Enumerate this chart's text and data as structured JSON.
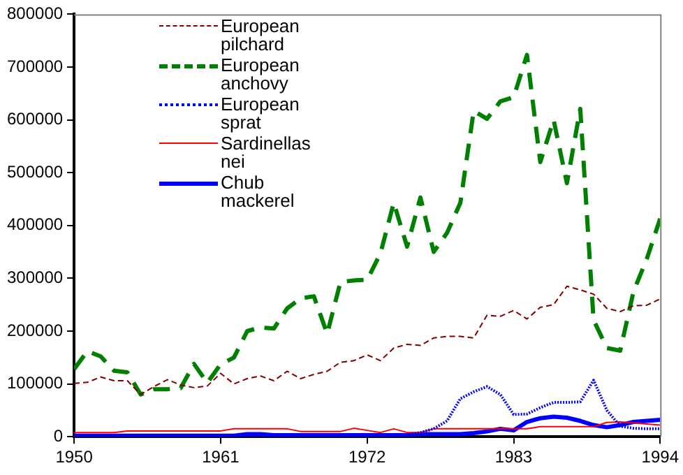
{
  "chart_data": {
    "type": "line",
    "x": [
      1950,
      1951,
      1952,
      1953,
      1954,
      1955,
      1956,
      1957,
      1958,
      1959,
      1960,
      1961,
      1962,
      1963,
      1964,
      1965,
      1966,
      1967,
      1968,
      1969,
      1970,
      1971,
      1972,
      1973,
      1974,
      1975,
      1976,
      1977,
      1978,
      1979,
      1980,
      1981,
      1982,
      1983,
      1984,
      1985,
      1986,
      1987,
      1988,
      1989,
      1990,
      1991,
      1992,
      1993,
      1994
    ],
    "xlim": [
      1950,
      1994
    ],
    "xticks": [
      1950,
      1961,
      1972,
      1983,
      1994
    ],
    "ylim": [
      0,
      800000
    ],
    "yticks": [
      0,
      100000,
      200000,
      300000,
      400000,
      500000,
      600000,
      700000,
      800000
    ],
    "grid": false,
    "legend": "top",
    "marker": "none",
    "series": [
      {
        "name": "European pilchard",
        "color": "#800000",
        "line_style": "dashed",
        "values": [
          101000,
          103000,
          113000,
          106000,
          106000,
          80000,
          95000,
          108000,
          98000,
          93000,
          96000,
          120000,
          100000,
          110000,
          115000,
          106000,
          124000,
          110000,
          118000,
          124000,
          141000,
          144000,
          155000,
          144000,
          168000,
          175000,
          173000,
          187000,
          190000,
          190000,
          187000,
          230000,
          228000,
          239000,
          223000,
          245000,
          250000,
          285000,
          278000,
          270000,
          243000,
          237000,
          248000,
          249000,
          261000
        ]
      },
      {
        "name": "European anchovy",
        "color": "#008000",
        "line_style": "dashed",
        "values": [
          128000,
          162000,
          152000,
          125000,
          122000,
          80000,
          90000,
          90000,
          92000,
          138000,
          102000,
          137000,
          150000,
          200000,
          207000,
          205000,
          243000,
          262000,
          266000,
          195000,
          293000,
          296000,
          297000,
          347000,
          443000,
          360000,
          453000,
          350000,
          386000,
          443000,
          617000,
          602000,
          635000,
          643000,
          723000,
          520000,
          600000,
          480000,
          621000,
          221000,
          168000,
          163000,
          275000,
          337000,
          413000
        ]
      },
      {
        "name": "European sprat",
        "color": "#0000ff",
        "line_style": "dotted",
        "values": [
          2000,
          2000,
          2000,
          2000,
          2000,
          2000,
          2000,
          2000,
          2000,
          2000,
          2000,
          2000,
          2000,
          2000,
          2000,
          2000,
          2000,
          2000,
          2000,
          2000,
          2000,
          4000,
          4000,
          4000,
          4000,
          4000,
          8000,
          15000,
          30000,
          72000,
          85000,
          95000,
          80000,
          42000,
          43000,
          55000,
          65000,
          65000,
          66000,
          107000,
          50000,
          20000,
          16000,
          15000,
          15000
        ]
      },
      {
        "name": "Sardinellas nei",
        "color": "#ff0000",
        "line_style": "solid",
        "values": [
          8000,
          8000,
          8000,
          8000,
          11000,
          11000,
          11000,
          11000,
          11000,
          11000,
          11000,
          11000,
          15000,
          15000,
          15000,
          15000,
          15000,
          10000,
          10000,
          10000,
          10000,
          16000,
          12000,
          8000,
          15000,
          8000,
          8000,
          15000,
          15000,
          15000,
          15000,
          15000,
          15000,
          15000,
          15000,
          19000,
          19000,
          19000,
          19000,
          19000,
          27000,
          28000,
          26000,
          24000,
          22000
        ]
      },
      {
        "name": "Chub mackerel",
        "color": "#0000ff",
        "line_style": "solid",
        "values": [
          2000,
          2000,
          2000,
          2000,
          2000,
          2000,
          2000,
          2000,
          2000,
          2000,
          2000,
          2000,
          2000,
          5000,
          5000,
          3000,
          3000,
          3000,
          3000,
          3000,
          3000,
          3000,
          3000,
          3000,
          3000,
          3000,
          5000,
          5000,
          5000,
          5000,
          7000,
          10000,
          15000,
          12000,
          28000,
          35000,
          38000,
          36000,
          30000,
          22000,
          18000,
          22000,
          28000,
          30000,
          32000
        ]
      }
    ]
  }
}
